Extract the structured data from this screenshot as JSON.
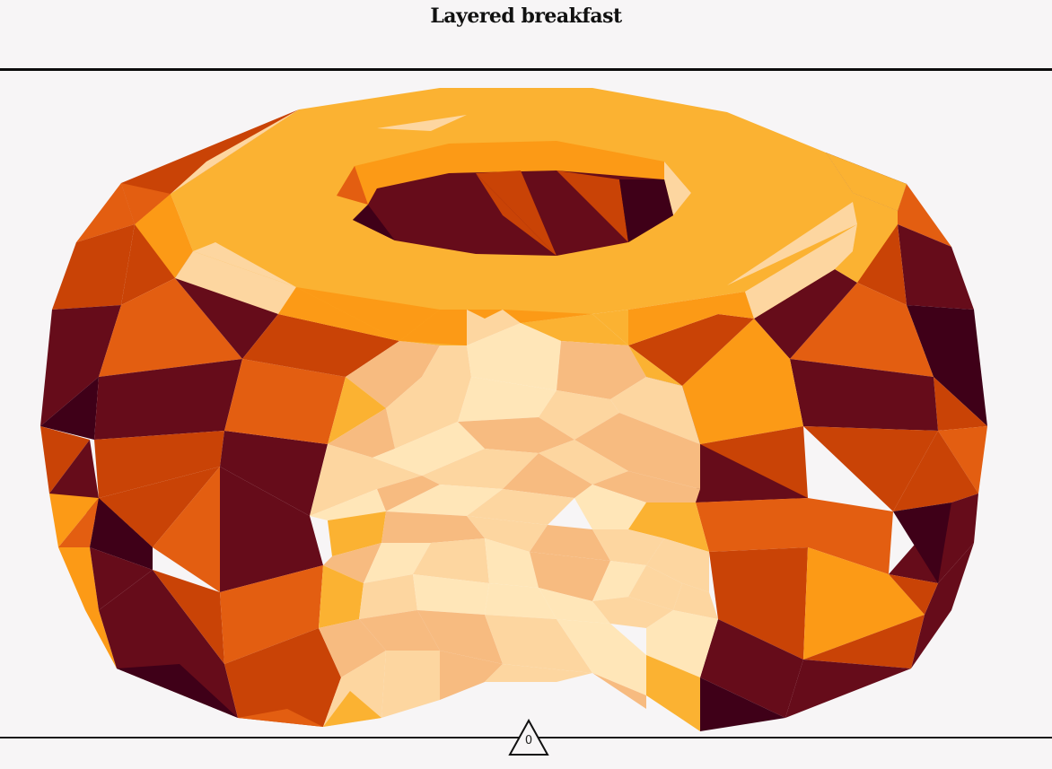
{
  "header": {
    "title": "Layered breakfast"
  },
  "scene": {
    "subject_icon": "low-poly-donut-icon",
    "palette": {
      "frosting": "#fbb232",
      "frosting_shade": "#fc9a16",
      "frosting_highlight": "#fdd6a0",
      "dough_light": "#e35e11",
      "dough_mid": "#c94306",
      "dough_dark": "#660c1a",
      "dough_darkest": "#3f0018",
      "crumb_light": "#ffe6b8",
      "crumb_mid": "#fdd6a0",
      "crumb_dark": "#f7bb80"
    }
  },
  "counter": {
    "icon": "triangle-icon",
    "value": "0"
  }
}
